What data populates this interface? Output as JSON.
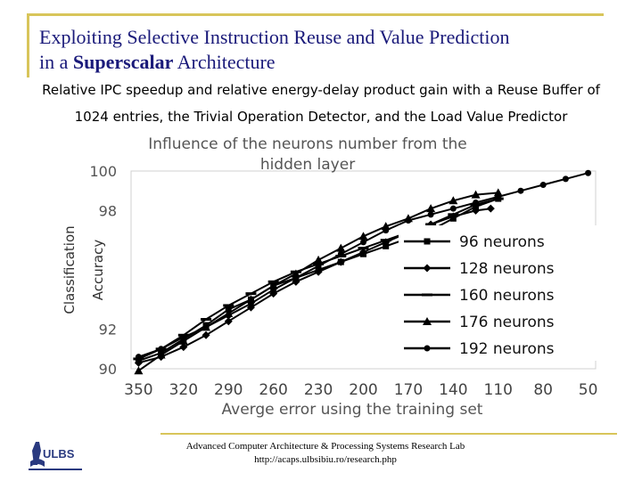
{
  "slide": {
    "title_line1": "Exploiting Selective Instruction Reuse and Value Prediction",
    "title_line2_prefix": "in a ",
    "title_line2_bold": "Superscalar",
    "title_line2_suffix": " Architecture",
    "subtitle_line1": "Relative IPC speedup and relative energy-delay product gain with a Reuse Buffer of",
    "subtitle_line2": "1024 entries, the Trivial Operation Detector, and the Load Value Predictor",
    "footer_line1": "Advanced Computer Architecture & Processing Systems Research Lab",
    "footer_line2": "http://acaps.ulbsibiu.ro/research.php",
    "logo_text": "ULBS"
  },
  "colors": {
    "accent": "#d8c55a",
    "title": "#1a1a7a",
    "series": "#000000"
  },
  "chart_data": {
    "type": "line",
    "title_line1": "Influence of the neurons number from the",
    "title_line2": "hidden layer",
    "xlabel": "Averge error using the training set",
    "ylabel_outer": "Classification",
    "ylabel_inner": "Accuracy",
    "x": [
      350,
      330,
      310,
      290,
      270,
      250,
      230,
      210,
      190,
      170,
      150,
      130,
      110,
      90,
      70,
      50
    ],
    "x_ticks": [
      350,
      320,
      290,
      260,
      230,
      200,
      170,
      140,
      110,
      80,
      50
    ],
    "y_ticks": [
      90,
      92,
      94,
      96,
      98,
      100
    ],
    "y_tick_labels": [
      "90",
      "92",
      "",
      "",
      "98",
      "100"
    ],
    "xlim": [
      355,
      45
    ],
    "ylim": [
      90,
      100
    ],
    "series": [
      {
        "name": "96 neurons",
        "marker": "square",
        "x": [
          350,
          335,
          320,
          305,
          290,
          275,
          260,
          245,
          230,
          215,
          200,
          185,
          170,
          155,
          140,
          125,
          110
        ],
        "y": [
          90.4,
          90.8,
          91.5,
          92.2,
          93.0,
          93.5,
          94.2,
          94.6,
          95.0,
          95.4,
          95.8,
          96.2,
          96.6,
          97.0,
          97.6,
          98.2,
          98.6
        ]
      },
      {
        "name": "128 neurons",
        "marker": "diamond",
        "x": [
          350,
          335,
          320,
          305,
          290,
          275,
          260,
          245,
          230,
          215,
          200,
          185,
          170,
          155,
          140,
          125,
          115
        ],
        "y": [
          90.3,
          90.6,
          91.1,
          91.7,
          92.4,
          93.1,
          93.8,
          94.4,
          94.9,
          95.4,
          95.9,
          96.4,
          96.9,
          97.3,
          97.7,
          98.0,
          98.1
        ]
      },
      {
        "name": "160 neurons",
        "marker": "dash",
        "x": [
          350,
          335,
          320,
          305,
          290,
          275,
          260,
          245,
          230,
          215,
          200,
          185,
          170,
          155,
          140,
          125,
          110
        ],
        "y": [
          90.5,
          91.0,
          91.7,
          92.5,
          93.2,
          93.8,
          94.4,
          94.9,
          95.3,
          95.7,
          96.1,
          96.5,
          96.9,
          97.3,
          97.8,
          98.3,
          98.6
        ]
      },
      {
        "name": "176 neurons",
        "marker": "triangle",
        "x": [
          350,
          335,
          320,
          305,
          290,
          275,
          260,
          245,
          230,
          215,
          200,
          185,
          170,
          155,
          140,
          125,
          110
        ],
        "y": [
          89.9,
          90.7,
          91.4,
          92.1,
          92.8,
          93.5,
          94.2,
          94.8,
          95.5,
          96.1,
          96.7,
          97.2,
          97.6,
          98.1,
          98.5,
          98.8,
          98.9
        ]
      },
      {
        "name": "192 neurons",
        "marker": "circle",
        "x": [
          350,
          335,
          320,
          305,
          290,
          275,
          260,
          245,
          230,
          215,
          200,
          185,
          170,
          155,
          140,
          125,
          110,
          95,
          80,
          65,
          50
        ],
        "y": [
          90.6,
          91.0,
          91.6,
          92.1,
          92.7,
          93.3,
          94.0,
          94.6,
          95.2,
          95.8,
          96.4,
          97.0,
          97.5,
          97.8,
          98.1,
          98.4,
          98.7,
          99.0,
          99.3,
          99.6,
          99.9
        ]
      }
    ],
    "legend_position": "center-right",
    "grid": false
  }
}
